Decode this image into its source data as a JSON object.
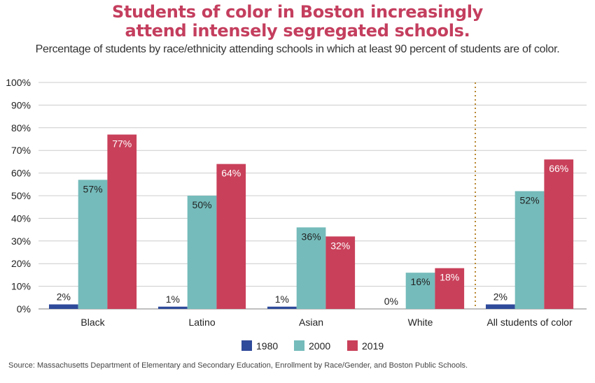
{
  "chart_data": {
    "type": "bar",
    "title": "Students of color in Boston increasingly attend intensely segregated schools.",
    "title_lines": [
      "Students of color in Boston increasingly",
      "attend intensely segregated schools."
    ],
    "subtitle": "Percentage of students by race/ethnicity attending schools in which at least 90 percent of students are of color.",
    "categories": [
      "Black",
      "Latino",
      "Asian",
      "White",
      "All students of color"
    ],
    "series": [
      {
        "name": "1980",
        "color": "#2e4a9a",
        "values": [
          2,
          1,
          1,
          0,
          2
        ]
      },
      {
        "name": "2000",
        "color": "#75bbbb",
        "values": [
          57,
          50,
          36,
          16,
          52
        ]
      },
      {
        "name": "2019",
        "color": "#c9405a",
        "values": [
          77,
          64,
          32,
          18,
          66
        ]
      }
    ],
    "data_labels": [
      [
        "2%",
        "1%",
        "1%",
        "0%",
        "2%"
      ],
      [
        "57%",
        "50%",
        "36%",
        "16%",
        "52%"
      ],
      [
        "77%",
        "64%",
        "32%",
        "18%",
        "66%"
      ]
    ],
    "yticks": [
      "0%",
      "10%",
      "20%",
      "30%",
      "40%",
      "50%",
      "60%",
      "70%",
      "80%",
      "90%",
      "100%"
    ],
    "ylim": [
      0,
      100
    ],
    "grid": true,
    "legend": "bottom",
    "divider_before": "All students of color",
    "source": "Source: Massachusetts Department of Elementary and Secondary Education, Enrollment by Race/Gender, and Boston Public Schools."
  }
}
